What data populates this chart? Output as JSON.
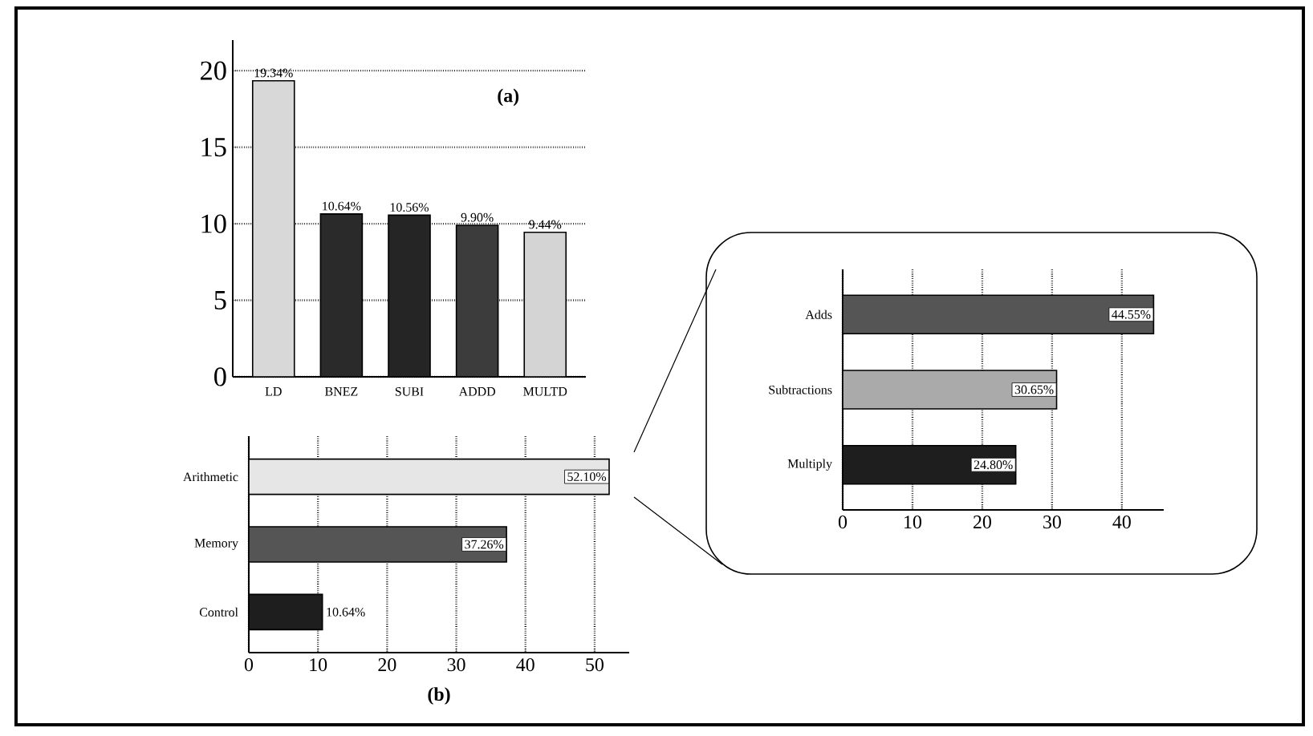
{
  "chart_data": [
    {
      "type": "bar",
      "title": "(a)",
      "categories": [
        "LD",
        "BNEZ",
        "SUBI",
        "ADDD",
        "MULTD"
      ],
      "values": [
        19.34,
        10.64,
        10.56,
        9.9,
        9.44
      ],
      "colors": [
        "#d8d8d8",
        "#2a2a2a",
        "#252525",
        "#3c3c3c",
        "#d4d4d4"
      ],
      "value_labels": [
        "19.34%",
        "10.64%",
        "10.56%",
        "9.90%",
        "9.44%"
      ],
      "ylim": [
        0,
        22
      ],
      "yticks": [
        0,
        5,
        10,
        15,
        20
      ],
      "grid": "y"
    },
    {
      "type": "bar",
      "orientation": "horizontal",
      "title": "(b)",
      "categories": [
        "Arithmetic",
        "Memory",
        "Control"
      ],
      "values": [
        52.1,
        37.26,
        10.64
      ],
      "colors": [
        "#e6e6e6",
        "#555555",
        "#1e1e1e"
      ],
      "value_labels": [
        "52.10%",
        "37.26%",
        "10.64%"
      ],
      "xlim": [
        0,
        55
      ],
      "xticks": [
        0,
        10,
        20,
        30,
        40,
        50
      ],
      "grid": "x"
    },
    {
      "type": "bar",
      "orientation": "horizontal",
      "categories": [
        "Adds",
        "Subtractions",
        "Multiply"
      ],
      "values": [
        44.55,
        30.65,
        24.8
      ],
      "colors": [
        "#555555",
        "#aaaaaa",
        "#1e1e1e"
      ],
      "value_labels": [
        "44.55%",
        "30.65%",
        "24.80%"
      ],
      "xlim": [
        0,
        46
      ],
      "xticks": [
        0,
        10,
        20,
        30,
        40
      ],
      "grid": "x"
    }
  ]
}
